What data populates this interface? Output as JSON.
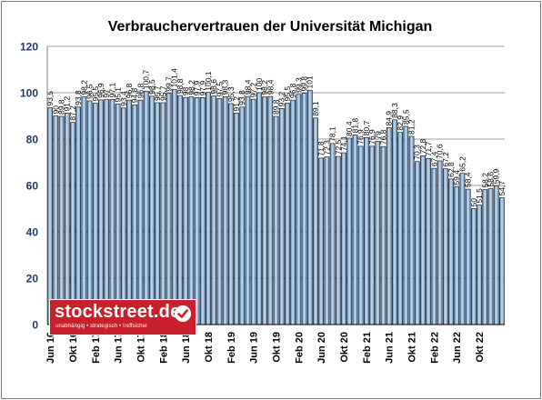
{
  "chart_data": {
    "type": "bar",
    "title": "Verbrauchervertrauen der Universität Michigan",
    "xlabel": "",
    "ylabel": "",
    "ylim": [
      0,
      120
    ],
    "yticks": [
      0,
      20,
      40,
      60,
      80,
      100,
      120
    ],
    "grid": true,
    "legend": "none",
    "tick_labels": [
      "Jun 16",
      "Okt 16",
      "Feb 17",
      "Jun 17",
      "Okt 17",
      "Feb 18",
      "Jun 18",
      "Okt 18",
      "Feb 19",
      "Jun 19",
      "Okt 19",
      "Feb 20",
      "Jun 20",
      "Okt 20",
      "Feb 21",
      "Jun 21",
      "Okt 21",
      "Feb 22",
      "Jun 22",
      "Okt 22"
    ],
    "value_labels": [
      "93,5",
      "90",
      "89,8",
      "91,2",
      "87,2",
      "93,8",
      "98,2",
      "96,5",
      "95,5",
      "96,9",
      "97",
      "97,1",
      "95,1",
      "93,4",
      "96,8",
      "94,8",
      "96,8",
      "100,7",
      "98,5",
      "95,7",
      "95,7",
      "99,7",
      "101,4",
      "98,8",
      "98",
      "98,2",
      "97,9",
      "97,9",
      "100,1",
      "98,6",
      "97,5",
      "98,3",
      "95,3",
      "91,2",
      "93,8",
      "98,4",
      "97,2",
      "100",
      "98,2",
      "98,4",
      "89,8",
      "93,2",
      "95,5",
      "96,8",
      "99,3",
      "99,8",
      "101",
      "89,1",
      "71,8",
      "72,3",
      "78,1",
      "72,5",
      "74,1",
      "80,4",
      "81,8",
      "76,9",
      "80,7",
      "76,9",
      "79",
      "76,8",
      "84,9",
      "88,3",
      "82,9",
      "85,5",
      "81,2",
      "70,3",
      "72,8",
      "71,7",
      "67,4",
      "70,6",
      "67,2",
      "62,8",
      "59,4",
      "65,2",
      "58,4",
      "50",
      "51,5",
      "58,2",
      "58,6",
      "59,9",
      "54,7"
    ],
    "values": [
      93.5,
      90,
      89.8,
      91.2,
      87.2,
      93.8,
      98.2,
      96.5,
      95.5,
      96.9,
      97,
      97.1,
      95.1,
      93.4,
      96.8,
      94.8,
      96.8,
      100.7,
      98.5,
      95.7,
      95.7,
      99.7,
      101.4,
      98.8,
      98,
      98.2,
      97.9,
      97.9,
      100.1,
      98.6,
      97.5,
      98.3,
      95.3,
      91.2,
      93.8,
      98.4,
      97.2,
      100,
      98.2,
      98.4,
      89.8,
      93.2,
      95.5,
      96.8,
      99.3,
      99.8,
      101,
      89.1,
      71.8,
      72.3,
      78.1,
      72.5,
      74.1,
      80.4,
      81.8,
      76.9,
      80.7,
      76.9,
      79,
      76.8,
      84.9,
      88.3,
      82.9,
      85.5,
      81.2,
      70.3,
      72.8,
      71.7,
      67.4,
      70.6,
      67.2,
      62.8,
      59.4,
      65.2,
      58.4,
      50,
      51.5,
      58.2,
      58.6,
      59.9,
      54.7
    ]
  },
  "logo": {
    "name": "stockstreet.de",
    "tagline": "unabhängig • strategisch • treffsicher"
  }
}
